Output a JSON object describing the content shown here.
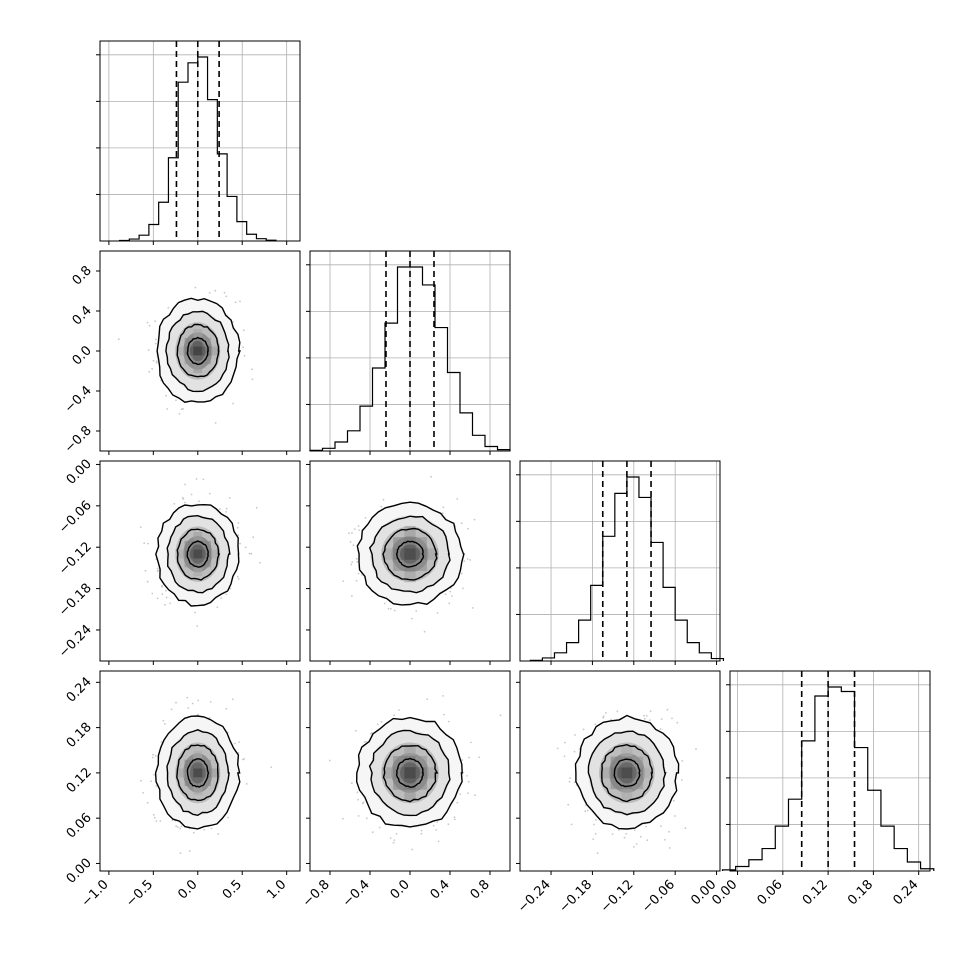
{
  "chart_data": {
    "type": "corner",
    "description_of_axes": "4 parameters, lower-triangle corner plot",
    "params": [
      {
        "range": [
          -1.1,
          1.15
        ],
        "mean": 0.0,
        "sd": 0.22,
        "q16": -0.24,
        "q50": 0.0,
        "q84": 0.24,
        "ticks": [
          -1.0,
          -0.5,
          0.0,
          0.5,
          1.0
        ],
        "tick_labels": [
          "−1.0",
          "−0.5",
          "0.0",
          "0.5",
          "1.0"
        ],
        "hist": [
          0.003,
          0.01,
          0.03,
          0.085,
          0.2,
          0.43,
          0.82,
          0.92,
          0.95,
          0.73,
          0.45,
          0.23,
          0.1,
          0.035,
          0.012,
          0.004
        ]
      },
      {
        "range": [
          -1.0,
          1.0
        ],
        "mean": 0.0,
        "sd": 0.25,
        "q16": -0.24,
        "q50": 0.0,
        "q84": 0.24,
        "ticks": [
          -0.8,
          -0.4,
          0.0,
          0.4,
          0.8
        ],
        "tick_labels": [
          "−0.8",
          "−0.4",
          "0.0",
          "0.4",
          "0.8"
        ],
        "hist": [
          0.003,
          0.012,
          0.04,
          0.09,
          0.2,
          0.37,
          0.57,
          0.82,
          0.82,
          0.74,
          0.55,
          0.35,
          0.17,
          0.07,
          0.02,
          0.006
        ]
      },
      {
        "range": [
          -0.285,
          0.005
        ],
        "mean": -0.13,
        "sd": 0.035,
        "q16": -0.165,
        "q50": -0.13,
        "q84": -0.095,
        "ticks": [
          -0.24,
          -0.18,
          -0.12,
          -0.06,
          0.0
        ],
        "tick_labels": [
          "−0.24",
          "−0.18",
          "−0.12",
          "−0.06",
          "0.00"
        ],
        "hist": [
          0.003,
          0.015,
          0.04,
          0.09,
          0.2,
          0.37,
          0.61,
          0.82,
          0.9,
          0.8,
          0.58,
          0.36,
          0.2,
          0.09,
          0.04,
          0.012
        ]
      },
      {
        "range": [
          -0.01,
          0.255
        ],
        "mean": 0.12,
        "sd": 0.035,
        "q16": 0.085,
        "q50": 0.12,
        "q84": 0.155,
        "ticks": [
          0.0,
          0.06,
          0.12,
          0.18,
          0.24
        ],
        "tick_labels": [
          "0.00",
          "0.06",
          "0.12",
          "0.18",
          "0.24"
        ],
        "hist": [
          0.005,
          0.02,
          0.05,
          0.1,
          0.2,
          0.32,
          0.58,
          0.78,
          0.82,
          0.8,
          0.55,
          0.36,
          0.2,
          0.1,
          0.04,
          0.01
        ]
      }
    ],
    "grid": true,
    "contour_levels_sigma": [
      0.5,
      1.0,
      1.5,
      2.0
    ],
    "n_scatter_points_per_panel": 450
  }
}
